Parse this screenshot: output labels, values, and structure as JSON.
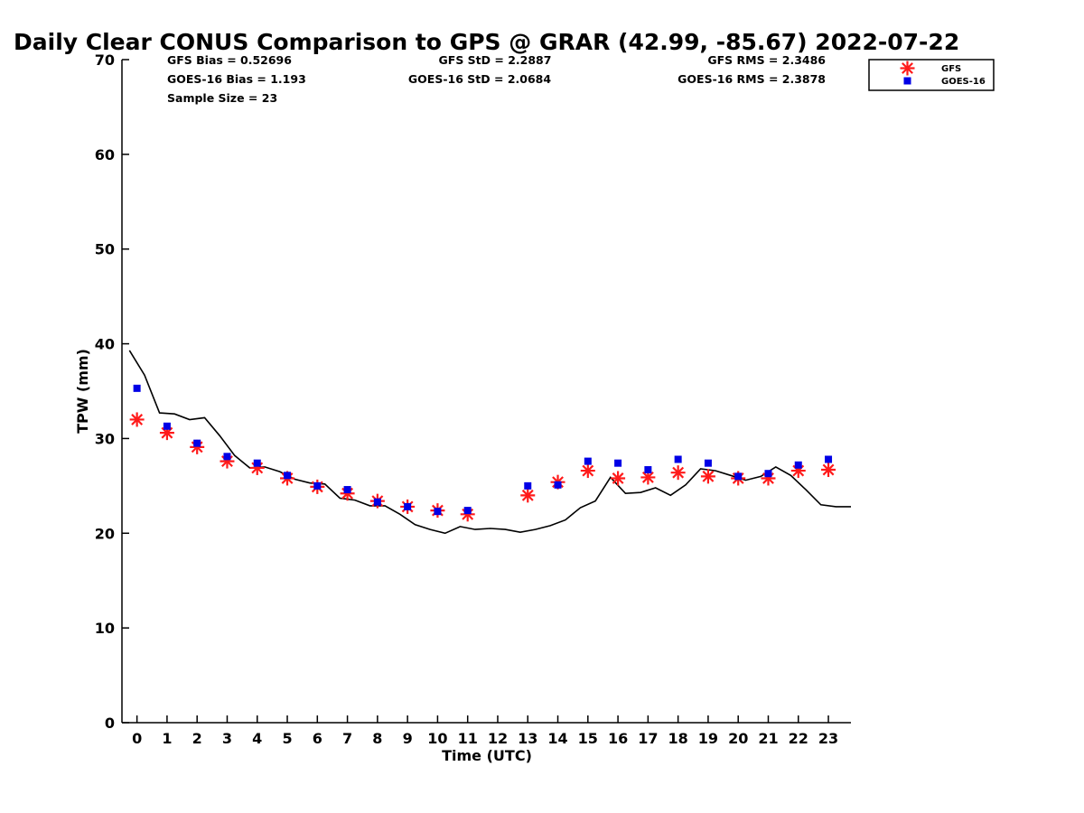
{
  "title": "Daily Clear CONUS Comparison to GPS @ GRAR (42.99, -85.67) 2022-07-22",
  "stats": {
    "gfs_bias": "GFS Bias = 0.52696",
    "goes_bias": "GOES-16 Bias = 1.193",
    "sample_size": "Sample Size = 23",
    "gfs_std": "GFS StD = 2.2887",
    "goes_std": "GOES-16 StD = 2.0684",
    "gfs_rms": "GFS RMS = 2.3486",
    "goes_rms": "GOES-16 RMS = 2.3878"
  },
  "legend": {
    "gfs": "GFS",
    "goes": "GOES-16"
  },
  "colors": {
    "gfs": "#ff1a1a",
    "goes": "#0000e6",
    "gps": "#000000"
  },
  "chart_data": {
    "type": "scatter",
    "xlabel": "Time (UTC)",
    "ylabel": "TPW (mm)",
    "xlim": [
      -0.5,
      23.75
    ],
    "ylim": [
      0,
      70
    ],
    "xticks": [
      0,
      1,
      2,
      3,
      4,
      5,
      6,
      7,
      8,
      9,
      10,
      11,
      12,
      13,
      14,
      15,
      16,
      17,
      18,
      19,
      20,
      21,
      22,
      23
    ],
    "yticks": [
      0,
      10,
      20,
      30,
      40,
      50,
      60,
      70
    ],
    "grid": false,
    "legend_position": "top-right",
    "series": [
      {
        "name": "GFS",
        "marker": "asterisk",
        "points": [
          [
            0,
            32.0
          ],
          [
            1,
            30.6
          ],
          [
            2,
            29.1
          ],
          [
            3,
            27.6
          ],
          [
            4,
            26.9
          ],
          [
            5,
            25.8
          ],
          [
            6,
            24.9
          ],
          [
            7,
            24.2
          ],
          [
            8,
            23.4
          ],
          [
            9,
            22.8
          ],
          [
            10,
            22.4
          ],
          [
            11,
            22.0
          ],
          [
            13,
            24.0
          ],
          [
            14,
            25.4
          ],
          [
            15,
            26.6
          ],
          [
            16,
            25.8
          ],
          [
            17,
            25.9
          ],
          [
            18,
            26.4
          ],
          [
            19,
            26.0
          ],
          [
            20,
            25.8
          ],
          [
            21,
            25.8
          ],
          [
            22,
            26.6
          ],
          [
            23,
            26.7
          ]
        ]
      },
      {
        "name": "GOES-16",
        "marker": "square",
        "points": [
          [
            0,
            35.3
          ],
          [
            1,
            31.3
          ],
          [
            2,
            29.5
          ],
          [
            3,
            28.1
          ],
          [
            4,
            27.4
          ],
          [
            5,
            26.1
          ],
          [
            6,
            25.0
          ],
          [
            7,
            24.6
          ],
          [
            8,
            23.3
          ],
          [
            9,
            22.8
          ],
          [
            10,
            22.3
          ],
          [
            11,
            22.4
          ],
          [
            13,
            25.0
          ],
          [
            14,
            25.1
          ],
          [
            15,
            27.6
          ],
          [
            16,
            27.4
          ],
          [
            17,
            26.7
          ],
          [
            18,
            27.8
          ],
          [
            19,
            27.4
          ],
          [
            20,
            26.0
          ],
          [
            21,
            26.3
          ],
          [
            22,
            27.2
          ],
          [
            23,
            27.8
          ]
        ]
      },
      {
        "marker": "line",
        "points": [
          [
            -0.25,
            39.3
          ],
          [
            0.25,
            36.7
          ],
          [
            0.75,
            32.7
          ],
          [
            1.25,
            32.6
          ],
          [
            1.75,
            32.0
          ],
          [
            2.25,
            32.2
          ],
          [
            2.75,
            30.3
          ],
          [
            3.25,
            28.2
          ],
          [
            3.75,
            26.9
          ],
          [
            4.25,
            27.0
          ],
          [
            4.75,
            26.5
          ],
          [
            5.25,
            25.7
          ],
          [
            5.75,
            25.3
          ],
          [
            6.25,
            25.2
          ],
          [
            6.75,
            23.7
          ],
          [
            7.25,
            23.5
          ],
          [
            7.75,
            22.9
          ],
          [
            8.25,
            22.9
          ],
          [
            8.75,
            22.0
          ],
          [
            9.25,
            20.9
          ],
          [
            9.75,
            20.4
          ],
          [
            10.25,
            20.0
          ],
          [
            10.75,
            20.7
          ],
          [
            11.25,
            20.4
          ],
          [
            11.75,
            20.5
          ],
          [
            12.25,
            20.4
          ],
          [
            12.75,
            20.1
          ],
          [
            13.25,
            20.4
          ],
          [
            13.75,
            20.8
          ],
          [
            14.25,
            21.4
          ],
          [
            14.75,
            22.7
          ],
          [
            15.25,
            23.4
          ],
          [
            15.75,
            25.9
          ],
          [
            16.25,
            24.2
          ],
          [
            16.75,
            24.3
          ],
          [
            17.25,
            24.8
          ],
          [
            17.75,
            24.0
          ],
          [
            18.25,
            25.1
          ],
          [
            18.75,
            26.8
          ],
          [
            19.25,
            26.6
          ],
          [
            19.75,
            26.1
          ],
          [
            20.25,
            25.6
          ],
          [
            20.75,
            26.0
          ],
          [
            21.25,
            27.0
          ],
          [
            21.75,
            26.1
          ],
          [
            22.25,
            24.6
          ],
          [
            22.75,
            23.0
          ],
          [
            23.25,
            22.8
          ],
          [
            23.75,
            22.8
          ]
        ]
      }
    ]
  }
}
